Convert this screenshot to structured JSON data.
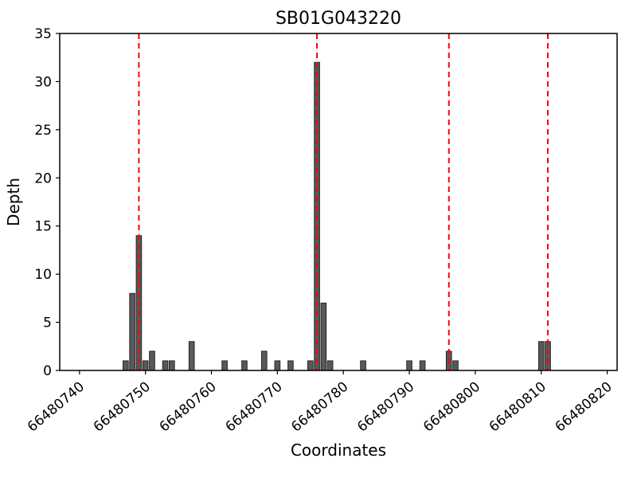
{
  "chart_data": {
    "type": "bar",
    "title": "SB01G043220",
    "xlabel": "Coordinates",
    "ylabel": "Depth",
    "xlim": [
      66480737,
      66480821.5
    ],
    "ylim": [
      0,
      35
    ],
    "x_ticks": [
      66480740,
      66480750,
      66480760,
      66480770,
      66480780,
      66480790,
      66480800,
      66480810,
      66480820
    ],
    "y_ticks": [
      0,
      5,
      10,
      15,
      20,
      25,
      30,
      35
    ],
    "bar_width": 0.8,
    "legend": "none",
    "grid": false,
    "bars": [
      {
        "x": 66480747,
        "depth": 1
      },
      {
        "x": 66480748,
        "depth": 8
      },
      {
        "x": 66480749,
        "depth": 14
      },
      {
        "x": 66480750,
        "depth": 1
      },
      {
        "x": 66480751,
        "depth": 2
      },
      {
        "x": 66480753,
        "depth": 1
      },
      {
        "x": 66480754,
        "depth": 1
      },
      {
        "x": 66480757,
        "depth": 3
      },
      {
        "x": 66480762,
        "depth": 1
      },
      {
        "x": 66480765,
        "depth": 1
      },
      {
        "x": 66480768,
        "depth": 2
      },
      {
        "x": 66480770,
        "depth": 1
      },
      {
        "x": 66480772,
        "depth": 1
      },
      {
        "x": 66480775,
        "depth": 1
      },
      {
        "x": 66480776,
        "depth": 32
      },
      {
        "x": 66480777,
        "depth": 7
      },
      {
        "x": 66480778,
        "depth": 1
      },
      {
        "x": 66480783,
        "depth": 1
      },
      {
        "x": 66480790,
        "depth": 1
      },
      {
        "x": 66480792,
        "depth": 1
      },
      {
        "x": 66480796,
        "depth": 2
      },
      {
        "x": 66480797,
        "depth": 1
      },
      {
        "x": 66480810,
        "depth": 3
      },
      {
        "x": 66480811,
        "depth": 3
      }
    ],
    "marker_lines": [
      66480749,
      66480776,
      66480796,
      66480811
    ],
    "colors": {
      "bar_fill": "#595959",
      "bar_edge": "#262626",
      "marker_line": "#ff0000",
      "axis": "#000000",
      "background": "#ffffff"
    }
  }
}
